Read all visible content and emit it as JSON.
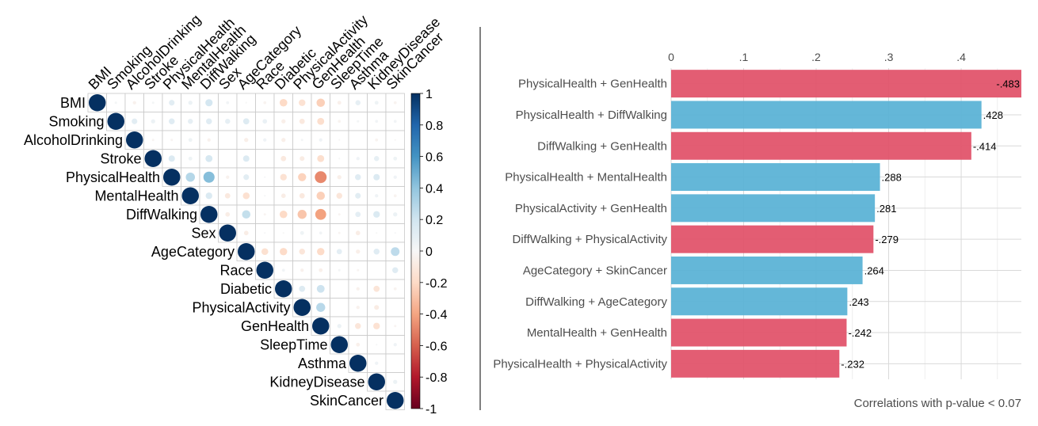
{
  "chart_data": [
    {
      "type": "heatmap",
      "subtype": "correlation-matrix-upper-triangle",
      "variables": [
        "BMI",
        "Smoking",
        "AlcoholDrinking",
        "Stroke",
        "PhysicalHealth",
        "MentalHealth",
        "DiffWalking",
        "Sex",
        "AgeCategory",
        "Race",
        "Diabetic",
        "PhysicalActivity",
        "GenHealth",
        "SleepTime",
        "Asthma",
        "KidneyDisease",
        "SkinCancer"
      ],
      "values": [
        [
          1,
          0.02,
          -0.04,
          0.02,
          0.11,
          0.06,
          0.18,
          0.03,
          -0.01,
          -0.03,
          -0.2,
          -0.15,
          -0.24,
          -0.05,
          0.09,
          0.05,
          -0.03
        ],
        [
          0.02,
          1,
          0.11,
          0.06,
          0.12,
          0.09,
          0.12,
          0.09,
          0.13,
          0.07,
          -0.06,
          -0.1,
          -0.17,
          -0.03,
          0.02,
          0.03,
          0.03
        ],
        [
          -0.04,
          0.11,
          1,
          -0.02,
          -0.02,
          0.05,
          -0.04,
          0.0,
          -0.06,
          0.04,
          -0.06,
          0.02,
          0.04,
          -0.01,
          -0.0,
          -0.03,
          -0.01
        ],
        [
          0.02,
          0.06,
          -0.02,
          1,
          0.14,
          0.05,
          0.17,
          0.0,
          0.14,
          0.0,
          -0.1,
          -0.08,
          -0.17,
          0.01,
          0.04,
          0.09,
          0.05
        ],
        [
          0.11,
          0.12,
          -0.02,
          0.14,
          1,
          0.29,
          0.43,
          -0.04,
          0.11,
          0.01,
          -0.15,
          -0.23,
          -0.48,
          -0.06,
          0.12,
          0.14,
          0.04
        ],
        [
          0.06,
          0.09,
          0.05,
          0.05,
          0.29,
          1,
          0.15,
          -0.1,
          -0.16,
          0.01,
          -0.07,
          -0.1,
          -0.24,
          -0.12,
          0.11,
          0.04,
          -0.03
        ],
        [
          0.18,
          0.12,
          -0.04,
          0.17,
          0.43,
          0.15,
          1,
          -0.07,
          0.24,
          -0.02,
          -0.2,
          -0.28,
          -0.41,
          -0.02,
          0.1,
          0.15,
          0.06
        ],
        [
          0.03,
          0.09,
          0.0,
          0.0,
          -0.04,
          -0.1,
          -0.07,
          1,
          -0.07,
          0.01,
          -0.01,
          0.05,
          0.03,
          -0.02,
          -0.07,
          -0.01,
          0.01
        ],
        [
          -0.01,
          0.13,
          -0.06,
          0.14,
          0.11,
          -0.16,
          0.24,
          -0.07,
          1,
          -0.16,
          -0.19,
          -0.12,
          -0.19,
          0.1,
          -0.06,
          0.12,
          0.26
        ],
        [
          -0.03,
          0.07,
          0.04,
          0.0,
          0.01,
          0.01,
          -0.02,
          0.01,
          -0.16,
          1,
          0.03,
          -0.04,
          -0.05,
          0.02,
          -0.02,
          -0.0,
          0.12
        ],
        [
          -0.2,
          -0.06,
          -0.06,
          -0.1,
          -0.15,
          -0.07,
          -0.2,
          -0.01,
          -0.19,
          0.03,
          1,
          0.13,
          0.21,
          0.0,
          -0.04,
          -0.13,
          -0.03
        ],
        [
          -0.15,
          -0.1,
          0.02,
          -0.08,
          -0.23,
          -0.1,
          -0.28,
          0.05,
          -0.12,
          -0.04,
          0.13,
          1,
          0.28,
          0.0,
          -0.04,
          -0.08,
          -0.0
        ],
        [
          -0.24,
          -0.17,
          0.04,
          -0.17,
          -0.48,
          -0.24,
          -0.41,
          0.03,
          -0.19,
          -0.05,
          0.21,
          0.28,
          1,
          0.06,
          -0.12,
          -0.15,
          -0.02
        ],
        [
          -0.05,
          -0.03,
          -0.01,
          0.01,
          -0.06,
          -0.12,
          -0.02,
          -0.02,
          0.1,
          0.02,
          0.0,
          0.0,
          0.06,
          1,
          -0.05,
          0.01,
          0.04
        ],
        [
          0.09,
          0.02,
          -0.0,
          0.04,
          0.12,
          0.11,
          0.1,
          -0.07,
          -0.06,
          -0.02,
          -0.04,
          -0.04,
          -0.12,
          -0.05,
          1,
          0.04,
          -0.0
        ],
        [
          0.05,
          0.03,
          -0.03,
          0.09,
          0.14,
          0.04,
          0.15,
          -0.01,
          0.12,
          -0.0,
          -0.13,
          -0.08,
          -0.15,
          0.01,
          0.04,
          1,
          0.06
        ],
        [
          -0.03,
          0.03,
          -0.01,
          0.05,
          0.04,
          -0.03,
          0.06,
          0.01,
          0.26,
          0.12,
          -0.03,
          -0.0,
          -0.02,
          0.04,
          -0.0,
          0.06,
          1
        ]
      ],
      "colorbar": {
        "ticks": [
          1,
          0.8,
          0.6,
          0.4,
          0.2,
          0,
          -0.2,
          -0.4,
          -0.6,
          -0.8,
          -1
        ],
        "tick_labels": [
          "1",
          "0.8",
          "0.6",
          "0.4",
          "0.2",
          "0",
          "-0.2",
          "-0.4",
          "-0.6",
          "-0.8",
          "-1"
        ]
      },
      "colors": {
        "negative": "#67001f",
        "zero": "#f7f7f7",
        "positive": "#053061",
        "grid": "#c8c8c8"
      }
    },
    {
      "type": "bar",
      "orientation": "horizontal",
      "categories": [
        "PhysicalHealth + GenHealth",
        "PhysicalHealth + DiffWalking",
        "DiffWalking + GenHealth",
        "PhysicalHealth + MentalHealth",
        "PhysicalActivity + GenHealth",
        "DiffWalking + PhysicalActivity",
        "AgeCategory + SkinCancer",
        "DiffWalking + AgeCategory",
        "MentalHealth + GenHealth",
        "PhysicalHealth + PhysicalActivity"
      ],
      "values": [
        -0.483,
        0.428,
        -0.414,
        0.288,
        0.281,
        -0.279,
        0.264,
        0.243,
        -0.242,
        -0.232
      ],
      "value_labels": [
        "-.483",
        ".428",
        "-.414",
        ".288",
        ".281",
        "-.279",
        ".264",
        ".243",
        "-.242",
        "-.232"
      ],
      "xlim": [
        0,
        0.483
      ],
      "xticks": [
        0,
        0.1,
        0.2,
        0.3,
        0.4
      ],
      "xtick_labels": [
        "0",
        ".1",
        ".2",
        ".3",
        ".4"
      ],
      "xaxis_position": "top",
      "caption": "Correlations with p-value < 0.07",
      "colors": {
        "negative": "#e2546b",
        "positive": "#5cb3d6",
        "grid": "#d9d9d9"
      }
    }
  ]
}
